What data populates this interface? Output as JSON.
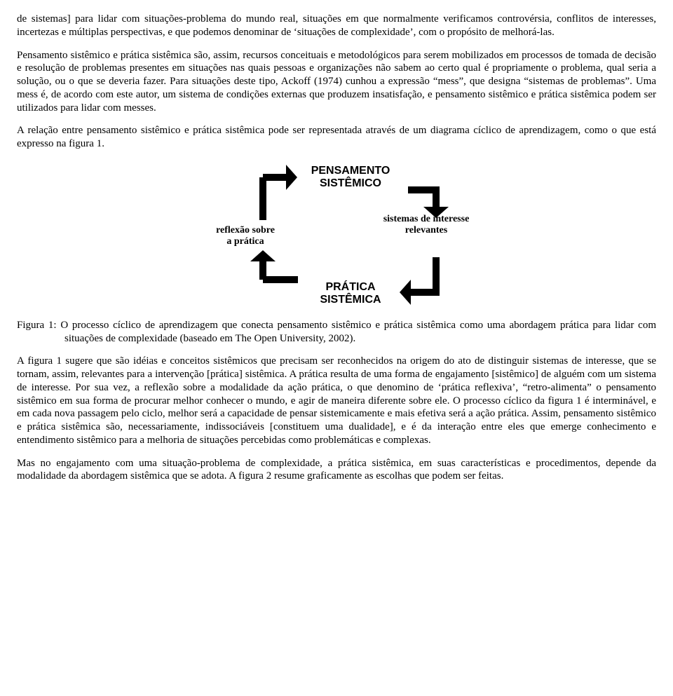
{
  "para1": "de sistemas] para lidar com situações-problema do mundo real, situações em que normalmente verificamos controvérsia, conflitos de interesses, incertezas e múltiplas perspectivas, e que podemos denominar de ‘situações de complexidade’, com o propósito de melhorá-las.",
  "para2": "Pensamento sistêmico e prática sistêmica são, assim, recursos conceituais e metodológicos para serem mobilizados em processos de tomada de decisão e resolução de problemas presentes em situações nas quais pessoas e organizações não sabem ao certo qual é propriamente o problema, qual seria a solução, ou o que se deveria fazer. Para situações deste tipo, Ackoff (1974) cunhou a expressão “mess”, que designa “sistemas de problemas”. Uma mess é, de acordo com este autor, um sistema de condições externas que produzem insatisfação, e pensamento sistêmico e prática sistêmica podem ser utilizados para lidar com messes.",
  "para3": "A relação entre pensamento sistêmico e prática sistêmica pode ser representada através de um diagrama cíclico de aprendizagem, como o que está expresso na figura 1.",
  "diagram": {
    "top_label_l1": "PENSAMENTO",
    "top_label_l2": "SISTÊMICO",
    "bottom_label_l1": "PRÁTICA",
    "bottom_label_l2": "SISTÊMICA",
    "left_label_l1": "reflexão sobre",
    "left_label_l2": "a prática",
    "right_label_l1": "sistemas de interesse",
    "right_label_l2": "relevantes",
    "arrow_color": "#000000",
    "arrow_stroke_width": 10,
    "label_fontsize_big": 16,
    "label_fontsize_small": 14
  },
  "caption_lead": "Figura 1: ",
  "caption_body": "O processo cíclico de aprendizagem que conecta pensamento sistêmico e prática sistêmica como uma abordagem prática para lidar com situações de complexidade (baseado em The Open University, 2002).",
  "para4": "A figura 1 sugere que são idéias e conceitos sistêmicos que precisam ser reconhecidos na origem do ato de distinguir sistemas de interesse, que se tornam, assim, relevantes para a intervenção [prática] sistêmica. A prática resulta de uma forma de engajamento [sistêmico] de alguém com um sistema de interesse. Por sua vez, a reflexão sobre a modalidade da ação prática, o que denomino de ‘prática reflexiva’, “retro-alimenta” o pensamento sistêmico em sua forma de procurar melhor conhecer o mundo, e agir de maneira diferente sobre ele. O processo cíclico da figura 1 é interminável, e em cada nova passagem pelo ciclo, melhor será a capacidade de pensar sistemicamente e mais efetiva será a ação prática. Assim, pensamento sistêmico e prática sistêmica são, necessariamente, indissociáveis [constituem uma dualidade], e é da interação entre eles que emerge conhecimento e entendimento sistêmico para a melhoria de situações percebidas como problemáticas e complexas.",
  "para5": "Mas no engajamento com uma situação-problema de complexidade, a prática sistêmica, em suas características e procedimentos, depende da modalidade da abordagem sistêmica que se adota. A figura 2 resume graficamente as escolhas que podem ser feitas."
}
